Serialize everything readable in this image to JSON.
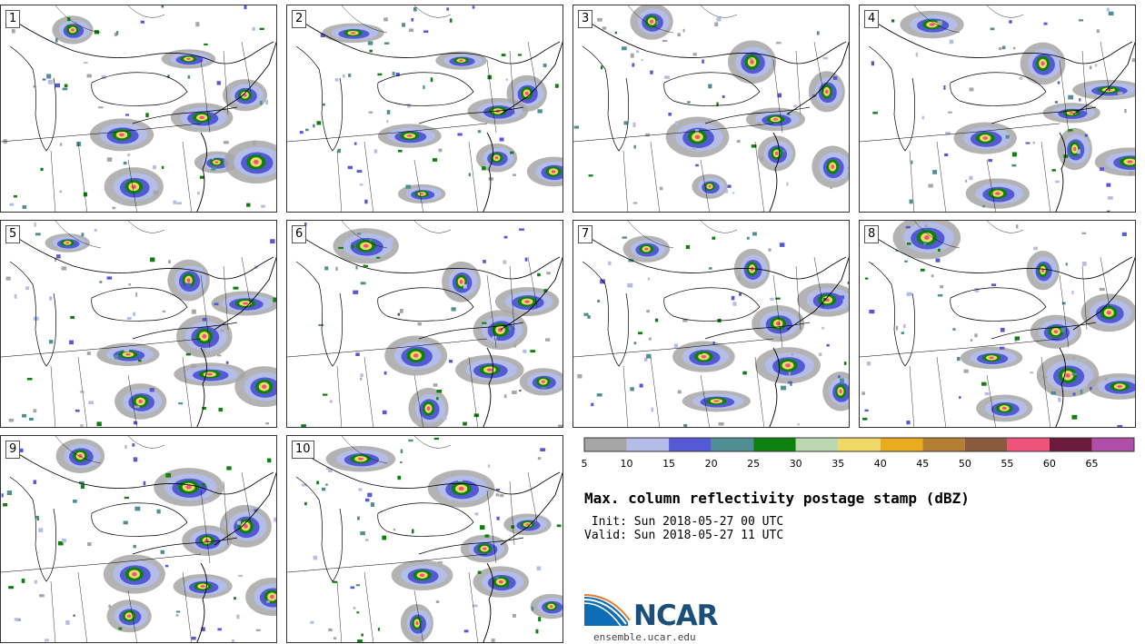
{
  "panels": [
    {
      "label": "1"
    },
    {
      "label": "2"
    },
    {
      "label": "3"
    },
    {
      "label": "4"
    },
    {
      "label": "5"
    },
    {
      "label": "6"
    },
    {
      "label": "7"
    },
    {
      "label": "8"
    },
    {
      "label": "9"
    },
    {
      "label": "10"
    }
  ],
  "colorbar": {
    "colors": [
      "#a6a6a6",
      "#b3bde8",
      "#5459d6",
      "#4f8f94",
      "#0d800d",
      "#bad9b3",
      "#f0d966",
      "#ebab1e",
      "#b57f33",
      "#8a5a3e",
      "#ef527a",
      "#6a1a3a",
      "#ae4ea8"
    ],
    "labels": [
      "5",
      "10",
      "15",
      "20",
      "25",
      "30",
      "35",
      "40",
      "45",
      "50",
      "55",
      "60",
      "65"
    ]
  },
  "title": "Max. column reflectivity postage stamp (dBZ)",
  "init": " Init: Sun 2018-05-27 00 UTC",
  "valid": "Valid: Sun 2018-05-27 11 UTC",
  "logo": {
    "text": "NCAR",
    "url_text": "ensemble.ucar.edu",
    "icon": "ncar-swoosh-icon"
  }
}
